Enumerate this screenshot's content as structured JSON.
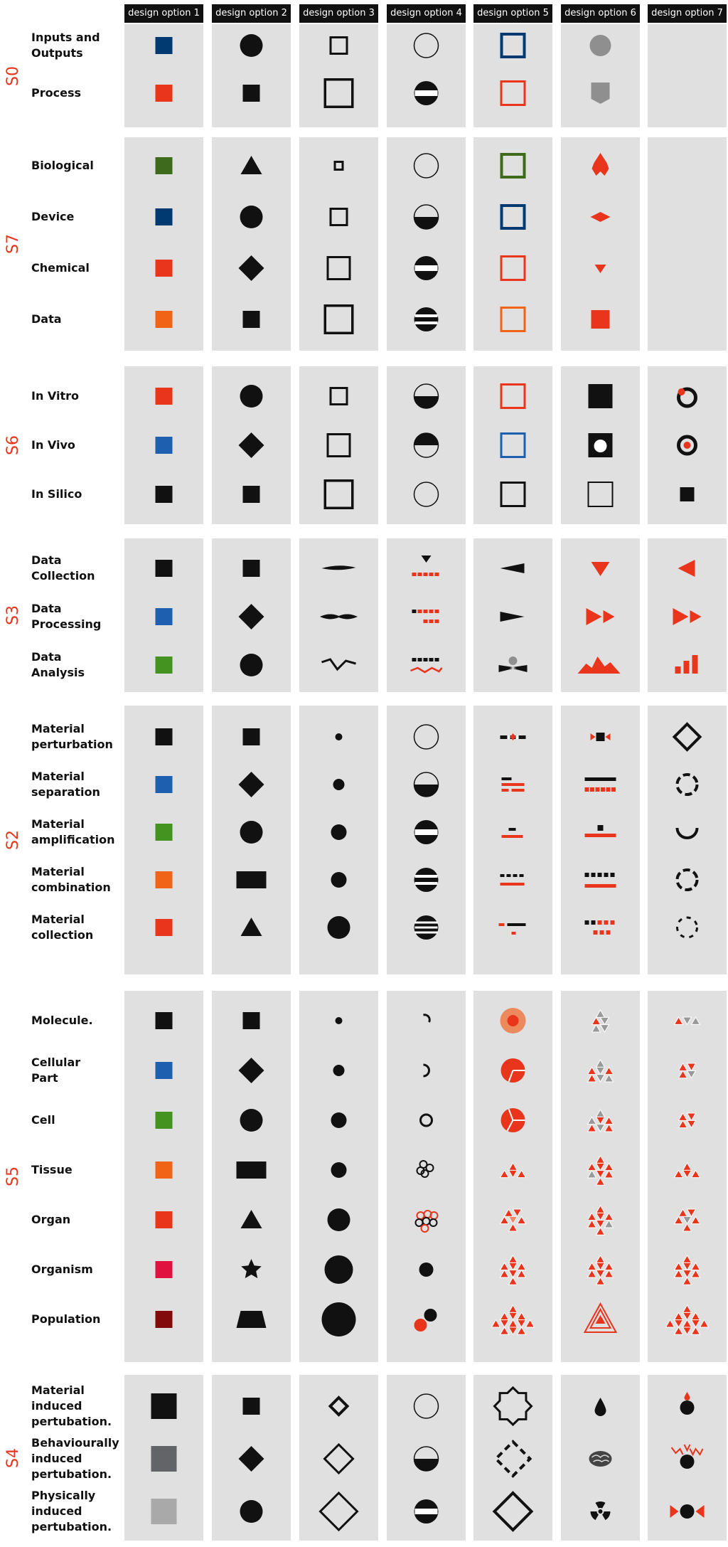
{
  "columns": [
    "design option 1",
    "design option 2",
    "design option 3",
    "design option 4",
    "design option 5",
    "design option 6",
    "design option 7"
  ],
  "colors": {
    "red": "#e8351c",
    "blue": "#003a70",
    "black": "#111111",
    "gray": "#888888",
    "orange": "#f06418",
    "green": "#3e6b1b"
  },
  "sections": [
    {
      "id": "S0",
      "rows": [
        {
          "label": "Inputs and\nOutputs",
          "icons": [
            "sq-navy",
            "circle",
            "sq-outline-s",
            "circle-outline",
            "sq-outline-navy",
            "circle-gray",
            ""
          ]
        },
        {
          "label": "Process",
          "icons": [
            "sq-red",
            "sq-black",
            "sq-outline-l",
            "circle-one-bar",
            "sq-outline-red",
            "shield-gray",
            ""
          ]
        }
      ]
    },
    {
      "id": "S7",
      "rows": [
        {
          "label": "Biological",
          "icons": [
            "sq-darkgreen",
            "triangle",
            "sq-outline-xs",
            "circle-outline",
            "sq-outline-darkgreen",
            "red-double-diamond",
            ""
          ]
        },
        {
          "label": "Device",
          "icons": [
            "sq-navy",
            "circle",
            "sq-outline-s",
            "circle-half-bottom",
            "sq-outline-navy",
            "red-diamond",
            ""
          ]
        },
        {
          "label": "Chemical",
          "icons": [
            "sq-red",
            "diamond",
            "sq-outline-m",
            "circle-one-bar",
            "sq-outline-red",
            "red-triangle-down-s",
            ""
          ]
        },
        {
          "label": "Data",
          "icons": [
            "sq-orange",
            "sq-black",
            "sq-outline-l",
            "circle-two-bars",
            "sq-outline-orange",
            "red-square",
            ""
          ]
        }
      ]
    },
    {
      "id": "S6",
      "rows": [
        {
          "label": "In Vitro",
          "icons": [
            "sq-red",
            "circle",
            "sq-outline-s",
            "circle-half-bottom",
            "sq-outline-red",
            "sq-black-l",
            "ring-red-dot-top"
          ]
        },
        {
          "label": "In Vivo",
          "icons": [
            "sq-blue",
            "diamond",
            "sq-outline-m",
            "circle-half-top",
            "sq-outline-blue",
            "sq-black-white-dot",
            "ring-red-dot-center"
          ]
        },
        {
          "label": "In Silico",
          "icons": [
            "sq-black",
            "sq-black",
            "sq-outline-l",
            "circle-outline",
            "sq-outline-black",
            "sq-outline-thin",
            "sq-black-s"
          ]
        }
      ]
    },
    {
      "id": "S3",
      "rows": [
        {
          "label": "Data\nCollection",
          "icons": [
            "sq-black",
            "sq-black",
            "lens-thin",
            "tri-down-dash-red",
            "wedge-left",
            "red-tri-down",
            "red-tri-left"
          ]
        },
        {
          "label": "Data\nProcessing",
          "icons": [
            "sq-blue",
            "diamond",
            "lens-double",
            "dash-mixed",
            "wedge-right",
            "red-ff",
            "red-ff"
          ]
        },
        {
          "label": "Data\nAnalysis",
          "icons": [
            "sq-green",
            "circle",
            "zigzag",
            "dash-zigzag",
            "bowtie-dot",
            "red-mountains",
            "red-bars"
          ]
        }
      ]
    },
    {
      "id": "S2",
      "rows": [
        {
          "label": "Material\nperturbation",
          "icons": [
            "sq-black",
            "sq-black",
            "dot-xs",
            "circle-outline",
            "dash-diamond-red",
            "sq-bowtie-red",
            "diamond-outline"
          ]
        },
        {
          "label": "Material\nseparation",
          "icons": [
            "sq-blue",
            "diamond",
            "dot-s",
            "circle-half-bottom",
            "dash-stack-red",
            "bar-dashes-red",
            "circle-dashed"
          ]
        },
        {
          "label": "Material\namplification",
          "icons": [
            "sq-green",
            "circle",
            "dot-m",
            "circle-one-bar",
            "dash-short-red",
            "sq-bar-red",
            "arc-bottom"
          ]
        },
        {
          "label": "Material\ncombination",
          "icons": [
            "sq-orange",
            "rect-wide",
            "dot-m",
            "circle-two-bars",
            "dash-dots-red",
            "dots-bar-red",
            "circle-dashed"
          ]
        },
        {
          "label": "Material\ncollection",
          "icons": [
            "sq-red",
            "triangle",
            "dot-l",
            "circle-three-bars",
            "dash-combo-red",
            "dots-grid-red",
            "circle-dashed-sparse"
          ]
        }
      ]
    },
    {
      "id": "S5",
      "rows": [
        {
          "label": "Molecule.",
          "icons": [
            "sq-black",
            "sq-black",
            "dot-xs",
            "arc-small",
            "orange-target",
            "tri-cluster-4",
            "tri-pair"
          ]
        },
        {
          "label": "Cellular\nPart",
          "icons": [
            "sq-blue",
            "diamond",
            "dot-s",
            "arc-c",
            "pie-1",
            "tri-cluster-6",
            "tri-diamond-4"
          ]
        },
        {
          "label": "Cell",
          "icons": [
            "sq-green",
            "circle",
            "dot-m",
            "ring",
            "pie-3",
            "tri-cluster-6b",
            "tri-diamond-4b"
          ]
        },
        {
          "label": "Tissue",
          "icons": [
            "sq-orange",
            "rect-wide",
            "dot-m",
            "rings-3",
            "red-tri-3",
            "tri-cluster-7",
            "red-tri-3"
          ]
        },
        {
          "label": "Organ",
          "icons": [
            "sq-red",
            "triangle",
            "dot-l",
            "rings-red",
            "red-tri-heart",
            "tri-cluster-9",
            "red-tri-heart-gray"
          ]
        },
        {
          "label": "Organism",
          "icons": [
            "sq-crimson",
            "star",
            "dot-xl",
            "dot-black-m",
            "red-tri-tall",
            "red-tri-tall",
            "red-tri-tall"
          ]
        },
        {
          "label": "Population",
          "icons": [
            "sq-maroon",
            "trapezoid",
            "dot-xxl",
            "dots-pair",
            "red-tri-big",
            "red-tri-big-outline",
            "red-tri-big"
          ]
        }
      ]
    },
    {
      "id": "S4",
      "rows": [
        {
          "label": "Material\ninduced\npertubation.",
          "icons": [
            "sq-black-xl",
            "sq-black",
            "diamond-outline-s",
            "circle-outline",
            "star-outline",
            "drop",
            "drop-red-dot"
          ]
        },
        {
          "label": "Behaviourally\ninduced\npertubation.",
          "icons": [
            "sq-darkgray-xl",
            "diamond",
            "diamond-outline-m",
            "circle-half-bottom",
            "diamond-dashed",
            "brain",
            "zigzag-red-dot"
          ]
        },
        {
          "label": "Physically\ninduced\npertubation.",
          "icons": [
            "sq-lightgray-xl",
            "circle",
            "diamond-outline-l",
            "circle-one-bar",
            "diamond-outline-xl",
            "radiation",
            "dot-bowtie-red"
          ]
        }
      ]
    }
  ]
}
